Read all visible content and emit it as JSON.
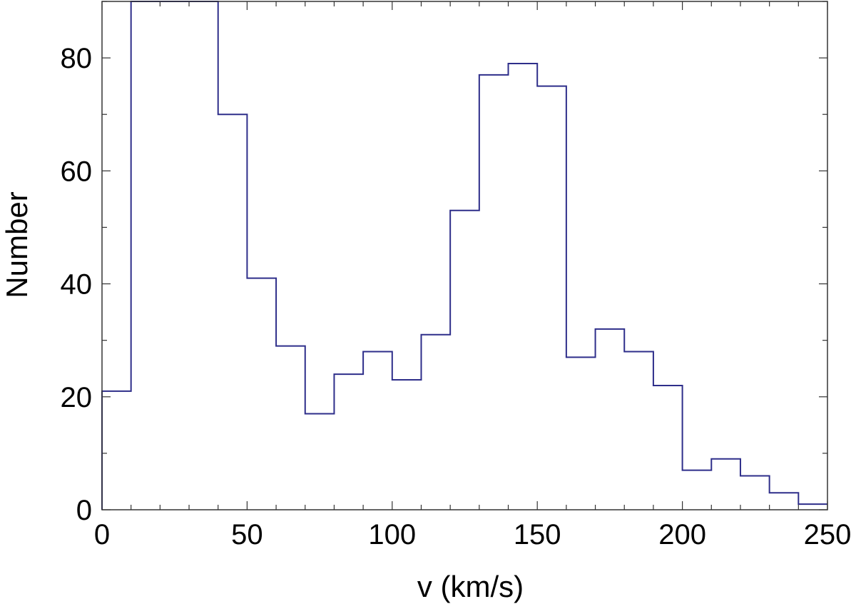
{
  "chart_data": {
    "type": "bar",
    "subtype": "step-histogram",
    "title": "",
    "xlabel": "v  (km/s)",
    "ylabel": "Number",
    "xlim": [
      0,
      250
    ],
    "ylim": [
      0,
      90
    ],
    "bin_width": 10,
    "bin_edges": [
      0,
      10,
      20,
      30,
      40,
      50,
      60,
      70,
      80,
      90,
      100,
      110,
      120,
      130,
      140,
      150,
      160,
      170,
      180,
      190,
      200,
      210,
      220,
      230,
      240,
      250
    ],
    "values": [
      21,
      90,
      90,
      90,
      70,
      41,
      29,
      17,
      24,
      28,
      23,
      31,
      53,
      77,
      79,
      75,
      27,
      32,
      28,
      22,
      7,
      9,
      6,
      3,
      1
    ],
    "series_color": "#2e2e8a",
    "x_major_ticks": [
      0,
      50,
      100,
      150,
      200,
      250
    ],
    "x_tick_labels": [
      "0",
      "50",
      "100",
      "150",
      "200",
      "250"
    ],
    "x_minor_step": 10,
    "y_major_ticks": [
      0,
      20,
      40,
      60,
      80
    ],
    "y_tick_labels": [
      "0",
      "20",
      "40",
      "60",
      "80"
    ],
    "y_minor_step": 10,
    "grid": false,
    "legend": "none"
  }
}
